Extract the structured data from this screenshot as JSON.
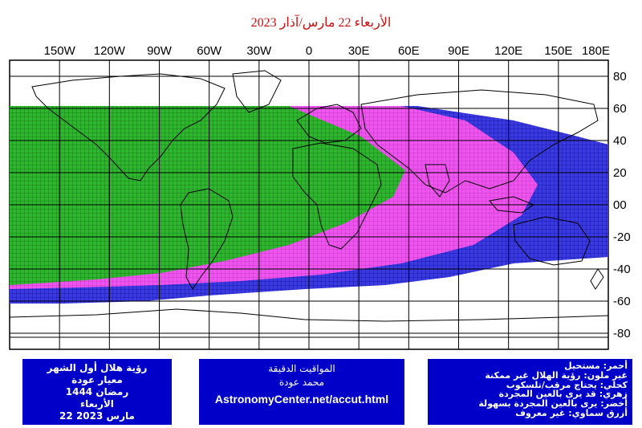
{
  "title": "الأربعاء 22 مارس/آذار 2023",
  "map": {
    "lon_ticks": [
      "150W",
      "120W",
      "90W",
      "60W",
      "30W",
      "0",
      "30E",
      "60E",
      "90E",
      "120E",
      "150E",
      "180E"
    ],
    "lat_ticks": [
      "80",
      "60",
      "40",
      "20",
      "00",
      "-20",
      "-40",
      "-60",
      "-80"
    ],
    "colors": {
      "green": "#2fb62f",
      "magenta": "#ee55ee",
      "blue": "#3a3ae0",
      "grid": "#000000",
      "box": "#0000c8"
    },
    "visibility_regions": [
      {
        "color": "green",
        "meaning": "يرى بالعين المجردة بسهولة"
      },
      {
        "color": "magenta",
        "meaning": "قد يرى بالعين المجردة"
      },
      {
        "color": "blue",
        "meaning": "يحتاج مرقب/تلسكوب"
      }
    ]
  },
  "info_left": {
    "line1": "رؤية هلال أول الشهر",
    "line2": "معيار عودة",
    "line3": "رمضان 1444",
    "line4": "الأربعاء",
    "line5": "22 مارس 2023"
  },
  "info_mid": {
    "line1": "المواقيت الدقيقة",
    "line2": "محمد عودة",
    "url": "AstronomyCenter.net/accut.html"
  },
  "legend": {
    "line1": "أحمر: مستحيل",
    "line2": "غير ملون: رؤية الهلال غير ممكنة",
    "line3": "كحلي: يحتاج مرقب/تلسكوب",
    "line4": "زهري: قد يرى بالعين المجردة",
    "line5": "أخضر: يرى بالعين المجردة بسهولة",
    "line6": "أزرق سماوي: غير معروف"
  }
}
